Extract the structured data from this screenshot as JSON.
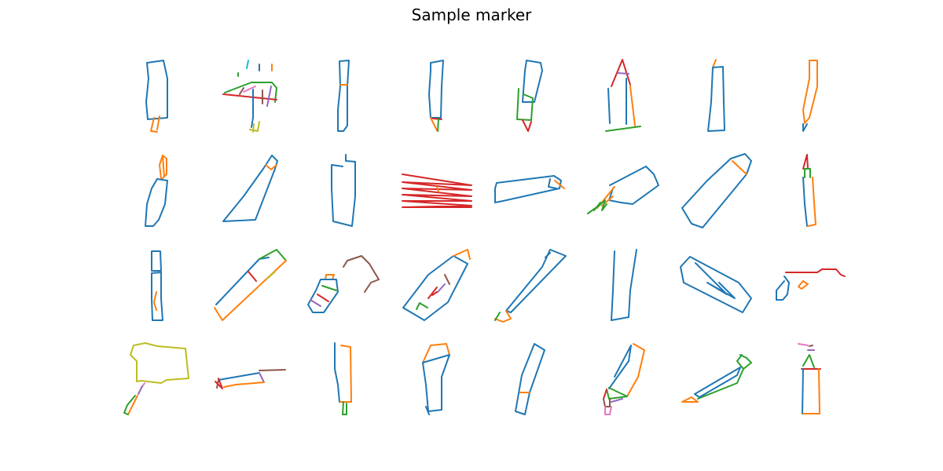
{
  "title": "Sample marker",
  "grid": {
    "rows": 4,
    "cols": 8
  },
  "colors": {
    "blue": "#1f77b4",
    "orange": "#ff7f0e",
    "green": "#2ca02c",
    "red": "#d62728",
    "purple": "#9467bd",
    "brown": "#8c564b",
    "pink": "#e377c2",
    "olive": "#bcbd22",
    "cyan": "#17becf"
  }
}
